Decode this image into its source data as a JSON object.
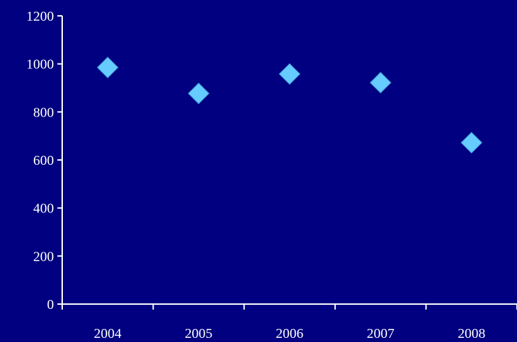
{
  "colors": {
    "background": "#000080",
    "axis": "#ffffff",
    "marker": "#66ccff",
    "text": "#ffffff"
  },
  "chart_data": {
    "type": "scatter",
    "title": "",
    "xlabel": "",
    "ylabel": "",
    "categories": [
      "2004",
      "2005",
      "2006",
      "2007",
      "2008"
    ],
    "series": [
      {
        "values": [
          985,
          877,
          958,
          922,
          672
        ],
        "marker": "diamond",
        "color": "#66ccff"
      }
    ],
    "ylim": [
      0,
      1200
    ],
    "yticks": [
      0,
      200,
      400,
      600,
      800,
      1000,
      1200
    ],
    "grid": false,
    "legend": "none"
  }
}
